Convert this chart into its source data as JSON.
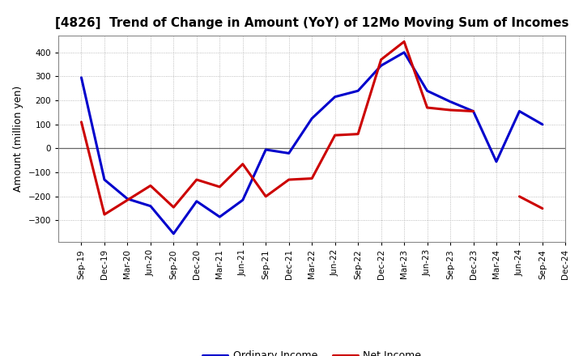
{
  "title": "[4826]  Trend of Change in Amount (YoY) of 12Mo Moving Sum of Incomes",
  "ylabel": "Amount (million yen)",
  "labels": [
    "Sep-19",
    "Dec-19",
    "Mar-20",
    "Jun-20",
    "Sep-20",
    "Dec-20",
    "Mar-21",
    "Jun-21",
    "Sep-21",
    "Dec-21",
    "Mar-22",
    "Jun-22",
    "Sep-22",
    "Dec-22",
    "Mar-23",
    "Jun-23",
    "Sep-23",
    "Dec-23",
    "Mar-24",
    "Jun-24",
    "Sep-24",
    "Dec-24"
  ],
  "ordinary_income": [
    295,
    -130,
    -210,
    -240,
    -355,
    -220,
    -285,
    -215,
    -5,
    -20,
    125,
    215,
    240,
    345,
    400,
    240,
    195,
    155,
    -55,
    155,
    100,
    null
  ],
  "net_income": [
    110,
    -275,
    -215,
    -155,
    -245,
    -130,
    -160,
    -65,
    -200,
    -130,
    -125,
    55,
    60,
    370,
    445,
    170,
    160,
    155,
    null,
    -200,
    -250,
    null
  ],
  "ordinary_color": "#0000cc",
  "net_color": "#cc0000",
  "background_color": "#ffffff",
  "grid_color": "#aaaaaa",
  "ylim": [
    -390,
    470
  ],
  "yticks": [
    -300,
    -200,
    -100,
    0,
    100,
    200,
    300,
    400
  ],
  "legend_labels": [
    "Ordinary Income",
    "Net Income"
  ],
  "line_width": 2.2
}
